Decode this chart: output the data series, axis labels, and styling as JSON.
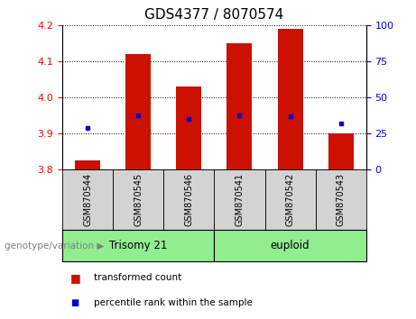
{
  "title": "GDS4377 / 8070574",
  "samples": [
    "GSM870544",
    "GSM870545",
    "GSM870546",
    "GSM870541",
    "GSM870542",
    "GSM870543"
  ],
  "groups": [
    "Trisomy 21",
    "Trisomy 21",
    "Trisomy 21",
    "euploid",
    "euploid",
    "euploid"
  ],
  "group_labels": [
    "Trisomy 21",
    "euploid"
  ],
  "red_values": [
    3.825,
    4.12,
    4.03,
    4.15,
    4.19,
    3.9
  ],
  "blue_values": [
    3.915,
    3.95,
    3.94,
    3.95,
    3.948,
    3.928
  ],
  "ylim_left": [
    3.8,
    4.2
  ],
  "ylim_right": [
    0,
    100
  ],
  "yticks_left": [
    3.8,
    3.9,
    4.0,
    4.1,
    4.2
  ],
  "yticks_right": [
    0,
    25,
    50,
    75,
    100
  ],
  "bar_color": "#CC1100",
  "dot_color": "#0000CC",
  "bar_width": 0.5,
  "base_value": 3.8,
  "legend_red": "transformed count",
  "legend_blue": "percentile rank within the sample",
  "gray_color": "#D3D3D3",
  "green_color": "#90EE90",
  "label_fontsize": 9,
  "tick_fontsize": 8,
  "sample_fontsize": 7,
  "title_fontsize": 11
}
